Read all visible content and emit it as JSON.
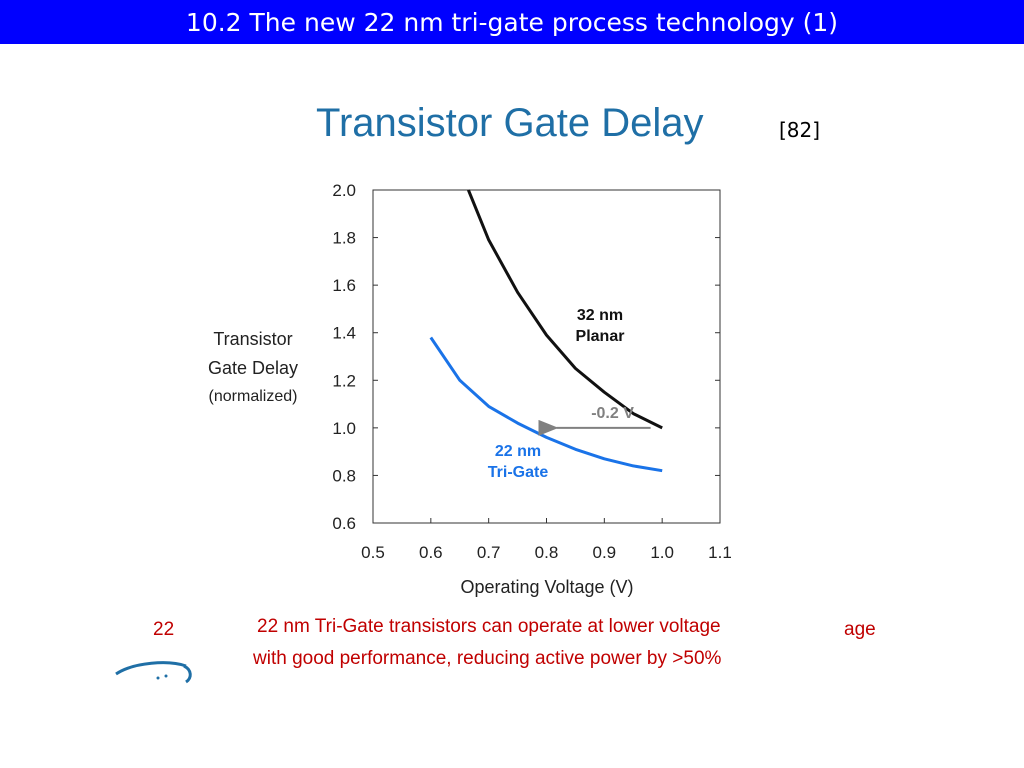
{
  "header": {
    "title": "10.2 The new 22 nm tri-gate process technology (1)"
  },
  "citation": "[82]",
  "chart_data": {
    "type": "line",
    "title": "Transistor Gate Delay",
    "xlabel": "Operating Voltage (V)",
    "ylabel": [
      "Transistor",
      "Gate Delay",
      "(normalized)"
    ],
    "xlim": [
      0.5,
      1.1
    ],
    "ylim": [
      0.6,
      2.0
    ],
    "xticks": [
      "0.5",
      "0.6",
      "0.7",
      "0.8",
      "0.9",
      "1.0",
      "1.1"
    ],
    "yticks": [
      "2.0",
      "1.8",
      "1.6",
      "1.4",
      "1.2",
      "1.0",
      "0.8",
      "0.6"
    ],
    "grid": false,
    "series": [
      {
        "name": "32 nm Planar",
        "label_lines": [
          "32 nm",
          "Planar"
        ],
        "color": "#111111",
        "points": [
          [
            0.665,
            2.0
          ],
          [
            0.7,
            1.79
          ],
          [
            0.75,
            1.57
          ],
          [
            0.8,
            1.39
          ],
          [
            0.85,
            1.25
          ],
          [
            0.9,
            1.15
          ],
          [
            0.95,
            1.06
          ],
          [
            1.0,
            1.0
          ]
        ]
      },
      {
        "name": "22 nm Tri-Gate",
        "label_lines": [
          "22 nm",
          "Tri-Gate"
        ],
        "color": "#1a73e8",
        "points": [
          [
            0.6,
            1.38
          ],
          [
            0.65,
            1.2
          ],
          [
            0.7,
            1.09
          ],
          [
            0.75,
            1.02
          ],
          [
            0.8,
            0.96
          ],
          [
            0.85,
            0.91
          ],
          [
            0.9,
            0.87
          ],
          [
            0.95,
            0.84
          ],
          [
            1.0,
            0.82
          ]
        ]
      }
    ],
    "annotations": [
      {
        "text": "-0.2 V",
        "color": "#808080",
        "arrow_from": [
          0.98,
          1.0
        ],
        "arrow_to": [
          0.8,
          1.0
        ]
      }
    ]
  },
  "caption": {
    "line1": "22 nm Tri-Gate transistors can operate at lower voltage",
    "line2": "with good performance, reducing active power by >50%"
  },
  "fragments": {
    "left": "22",
    "right": "age"
  }
}
